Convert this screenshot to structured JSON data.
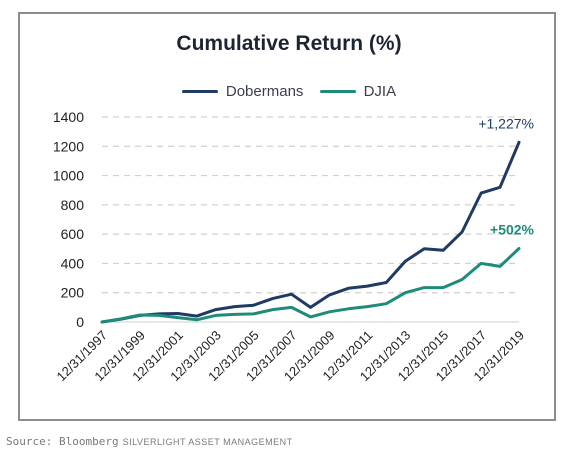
{
  "chart_data": {
    "type": "line",
    "title": "Cumulative Return (%)",
    "x": [
      "12/31/1997",
      "12/31/1998",
      "12/31/1999",
      "12/31/2000",
      "12/31/2001",
      "12/31/2002",
      "12/31/2003",
      "12/31/2004",
      "12/31/2005",
      "12/31/2006",
      "12/31/2007",
      "12/31/2008",
      "12/31/2009",
      "12/31/2010",
      "12/31/2011",
      "12/31/2012",
      "12/31/2013",
      "12/31/2014",
      "12/31/2015",
      "12/31/2016",
      "12/31/2017",
      "12/31/2018",
      "12/31/2019"
    ],
    "x_tick_labels": [
      "12/31/1997",
      "12/31/1999",
      "12/31/2001",
      "12/31/2003",
      "12/31/2005",
      "12/31/2007",
      "12/31/2009",
      "12/31/2011",
      "12/31/2013",
      "12/31/2015",
      "12/31/2017",
      "12/31/2019"
    ],
    "ylim": [
      0,
      1400
    ],
    "yticks": [
      0,
      200,
      400,
      600,
      800,
      1000,
      1200,
      1400
    ],
    "grid": "horizontal-dashed",
    "legend_position": "top-center",
    "series": [
      {
        "name": "Dobermans",
        "color": "#1f3a63",
        "values": [
          0,
          20,
          45,
          55,
          58,
          40,
          85,
          105,
          115,
          160,
          190,
          100,
          185,
          230,
          245,
          270,
          415,
          500,
          490,
          615,
          880,
          920,
          1227
        ],
        "end_label": "+1,227%"
      },
      {
        "name": "DJIA",
        "color": "#1f8c7a",
        "values": [
          0,
          22,
          48,
          45,
          30,
          15,
          45,
          52,
          55,
          85,
          100,
          35,
          70,
          90,
          105,
          125,
          200,
          235,
          235,
          290,
          400,
          380,
          502
        ],
        "end_label": "+502%"
      }
    ]
  },
  "footer": {
    "source": "Source: Bloomberg",
    "brand": "SILVERLIGHT ASSET MANAGEMENT"
  }
}
